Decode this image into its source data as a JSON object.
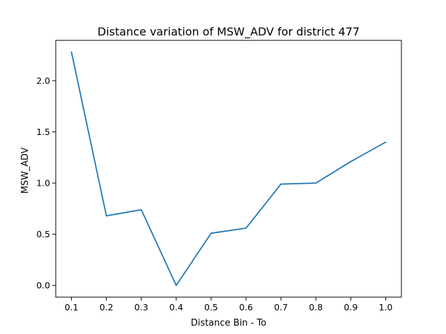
{
  "chart_data": {
    "type": "line",
    "title": "Distance variation of MSW_ADV for district 477",
    "xlabel": "Distance Bin - To",
    "ylabel": "MSW_ADV",
    "x": [
      0.1,
      0.2,
      0.3,
      0.4,
      0.5,
      0.6,
      0.7,
      0.8,
      0.9,
      1.0
    ],
    "series": [
      {
        "values": [
          2.28,
          0.68,
          0.74,
          0.0,
          0.51,
          0.56,
          0.99,
          1.0,
          1.21,
          1.4
        ],
        "color": "#1f77b4"
      }
    ],
    "x_ticks": [
      "0.1",
      "0.2",
      "0.3",
      "0.4",
      "0.5",
      "0.6",
      "0.7",
      "0.8",
      "0.9",
      "1.0"
    ],
    "y_ticks": [
      "0.0",
      "0.5",
      "1.0",
      "1.5",
      "2.0"
    ],
    "xlim": [
      0.055,
      1.045
    ],
    "ylim": [
      -0.114,
      2.394
    ],
    "grid": false,
    "legend": "none"
  }
}
